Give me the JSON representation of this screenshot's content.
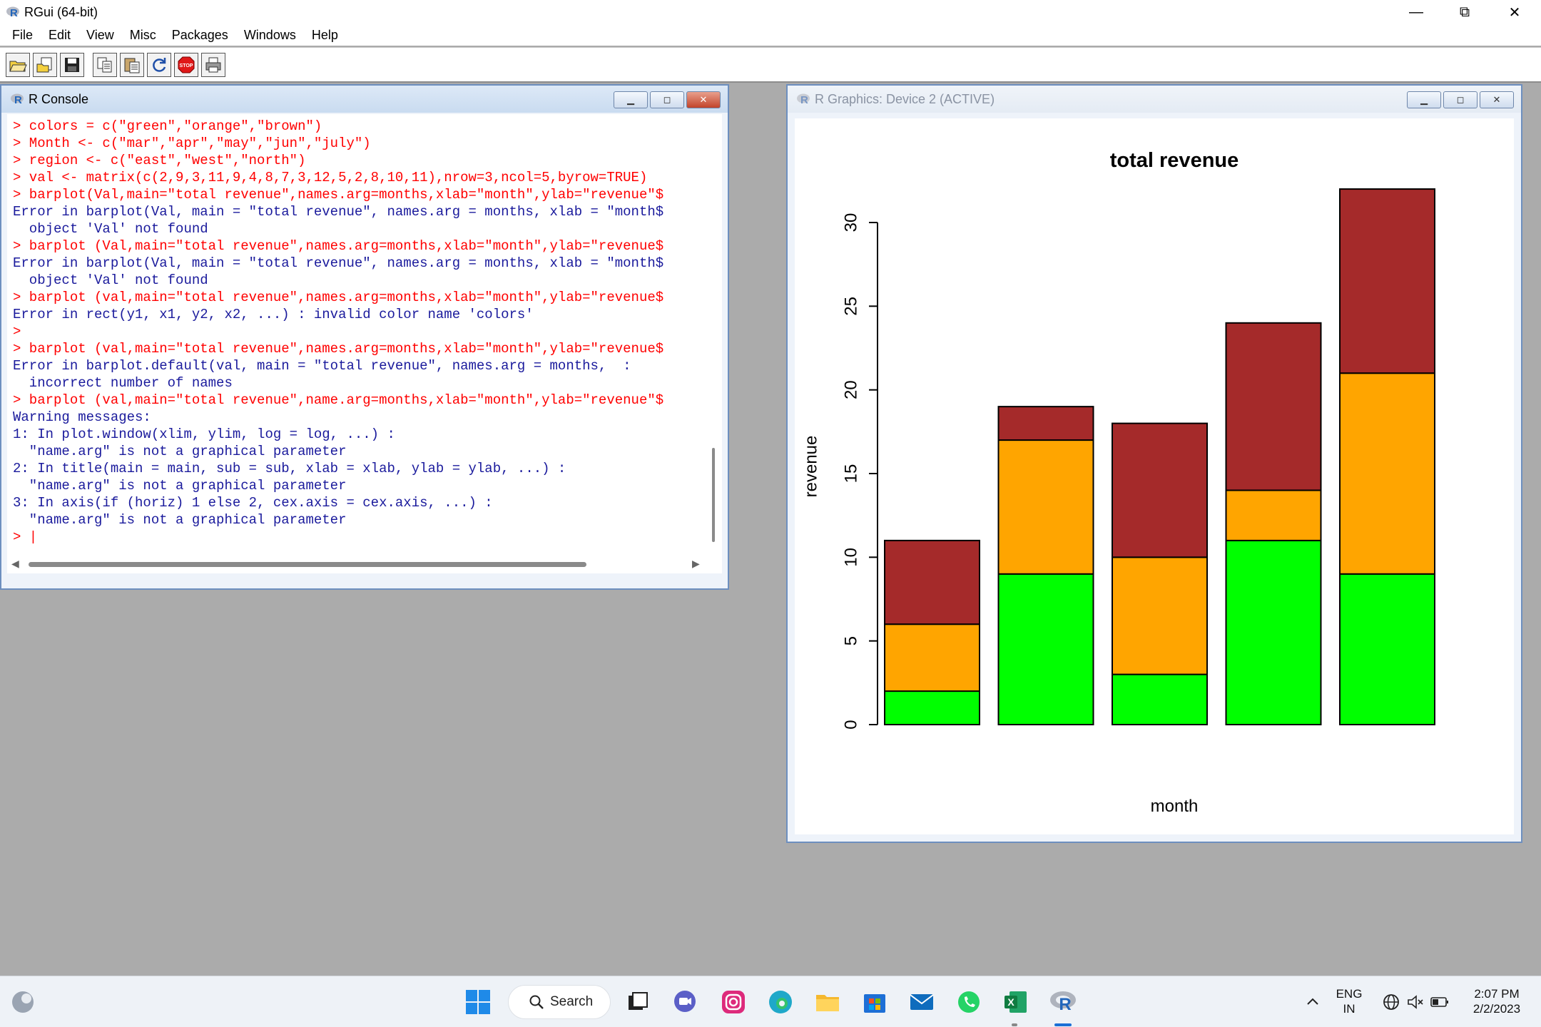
{
  "window": {
    "title": "RGui (64-bit)",
    "minimize": "—",
    "restore": "⧉",
    "close": "✕"
  },
  "menu": [
    "File",
    "Edit",
    "View",
    "Misc",
    "Packages",
    "Windows",
    "Help"
  ],
  "toolbar": {
    "buttons": [
      "open-script-icon",
      "load-workspace-icon",
      "save-icon",
      "copy-icon",
      "paste-icon",
      "refresh-icon",
      "stop-icon",
      "print-icon"
    ],
    "stop_label": "STOP"
  },
  "console": {
    "title": "R Console",
    "lines": [
      {
        "kind": "in",
        "text": "> colors = c(\"green\",\"orange\",\"brown\")"
      },
      {
        "kind": "in",
        "text": "> Month <- c(\"mar\",\"apr\",\"may\",\"jun\",\"july\")"
      },
      {
        "kind": "in",
        "text": "> region <- c(\"east\",\"west\",\"north\")"
      },
      {
        "kind": "in",
        "text": "> val <- matrix(c(2,9,3,11,9,4,8,7,3,12,5,2,8,10,11),nrow=3,ncol=5,byrow=TRUE)"
      },
      {
        "kind": "in",
        "text": "> barplot(Val,main=\"total revenue\",names.arg=months,xlab=\"month\",ylab=\"revenue\"$"
      },
      {
        "kind": "out",
        "text": "Error in barplot(Val, main = \"total revenue\", names.arg = months, xlab = \"month$"
      },
      {
        "kind": "out",
        "text": "  object 'Val' not found"
      },
      {
        "kind": "in",
        "text": "> barplot (Val,main=\"total revenue\",names.arg=months,xlab=\"month\",ylab=\"revenue$"
      },
      {
        "kind": "out",
        "text": "Error in barplot(Val, main = \"total revenue\", names.arg = months, xlab = \"month$"
      },
      {
        "kind": "out",
        "text": "  object 'Val' not found"
      },
      {
        "kind": "in",
        "text": "> barplot (val,main=\"total revenue\",names.arg=months,xlab=\"month\",ylab=\"revenue$"
      },
      {
        "kind": "out",
        "text": "Error in rect(y1, x1, y2, x2, ...) : invalid color name 'colors'"
      },
      {
        "kind": "in",
        "text": ">"
      },
      {
        "kind": "in",
        "text": "> barplot (val,main=\"total revenue\",names.arg=months,xlab=\"month\",ylab=\"revenue$"
      },
      {
        "kind": "out",
        "text": "Error in barplot.default(val, main = \"total revenue\", names.arg = months,  :"
      },
      {
        "kind": "out",
        "text": "  incorrect number of names"
      },
      {
        "kind": "in",
        "text": "> barplot (val,main=\"total revenue\",name.arg=months,xlab=\"month\",ylab=\"revenue\"$"
      },
      {
        "kind": "out",
        "text": "Warning messages:"
      },
      {
        "kind": "out",
        "text": "1: In plot.window(xlim, ylim, log = log, ...) :"
      },
      {
        "kind": "out",
        "text": "  \"name.arg\" is not a graphical parameter"
      },
      {
        "kind": "out",
        "text": "2: In title(main = main, sub = sub, xlab = xlab, ylab = ylab, ...) :"
      },
      {
        "kind": "out",
        "text": "  \"name.arg\" is not a graphical parameter"
      },
      {
        "kind": "out",
        "text": "3: In axis(if (horiz) 1 else 2, cex.axis = cex.axis, ...) :"
      },
      {
        "kind": "out",
        "text": "  \"name.arg\" is not a graphical parameter"
      },
      {
        "kind": "in",
        "text": "> |"
      }
    ]
  },
  "graphics": {
    "title": "R Graphics: Device 2 (ACTIVE)"
  },
  "chart_data": {
    "type": "bar",
    "stacked": true,
    "title": "total revenue",
    "xlabel": "month",
    "ylabel": "revenue",
    "ylim": [
      0,
      30
    ],
    "yticks": [
      0,
      5,
      10,
      15,
      20,
      25,
      30
    ],
    "categories": [
      "",
      "",
      "",
      "",
      ""
    ],
    "series": [
      {
        "color": "#00ff00",
        "values": [
          2,
          9,
          3,
          11,
          9
        ]
      },
      {
        "color": "#ffa500",
        "values": [
          4,
          8,
          7,
          3,
          12
        ]
      },
      {
        "color": "#a52a2a",
        "values": [
          5,
          2,
          8,
          10,
          11
        ]
      }
    ],
    "legend": false,
    "grid": false
  },
  "taskbar": {
    "search_label": "Search",
    "apps": [
      "widgets-icon",
      "start-icon",
      "task-view-icon",
      "chat-icon",
      "instagram-icon",
      "edge-icon",
      "file-explorer-icon",
      "store-icon",
      "mail-icon",
      "whatsapp-icon",
      "excel-icon",
      "r-icon"
    ],
    "lang_top": "ENG",
    "lang_bottom": "IN",
    "time": "2:07 PM",
    "date": "2/2/2023"
  }
}
